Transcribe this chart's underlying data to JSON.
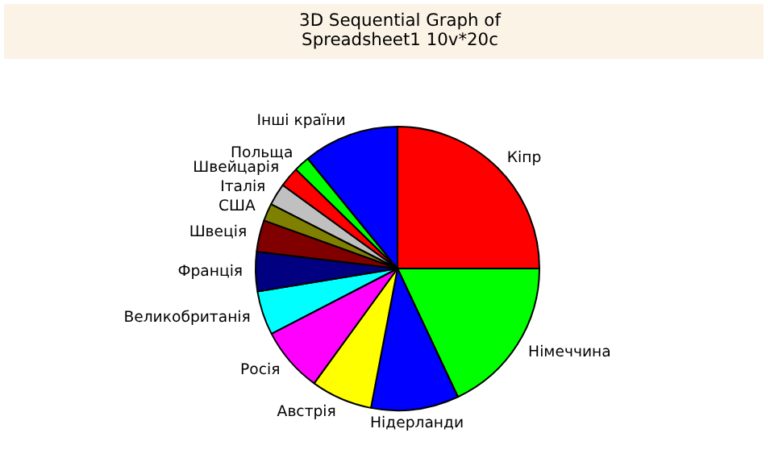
{
  "chart_data": {
    "type": "pie",
    "title": "3D Sequential Graph of Spreadsheet1 10v*20c",
    "categories": [
      "Кіпр",
      "Німеччина",
      "Нідерланди",
      "Австрія",
      "Росія",
      "Великобританія",
      "Франція",
      "Швеція",
      "США",
      "Італія",
      "Швейцарія",
      "Польща",
      "Інші країни"
    ],
    "values": [
      25,
      18,
      10,
      7,
      7.4,
      5,
      4.5,
      3.6,
      2,
      2.5,
      2.3,
      1.8,
      10.9
    ],
    "colors": [
      "#ff0000",
      "#00ff00",
      "#0000ff",
      "#ffff00",
      "#ff00ff",
      "#00ffff",
      "#000080",
      "#800000",
      "#808000",
      "#c0c0c0",
      "#ff0000",
      "#00ff00",
      "#0000ff"
    ]
  }
}
